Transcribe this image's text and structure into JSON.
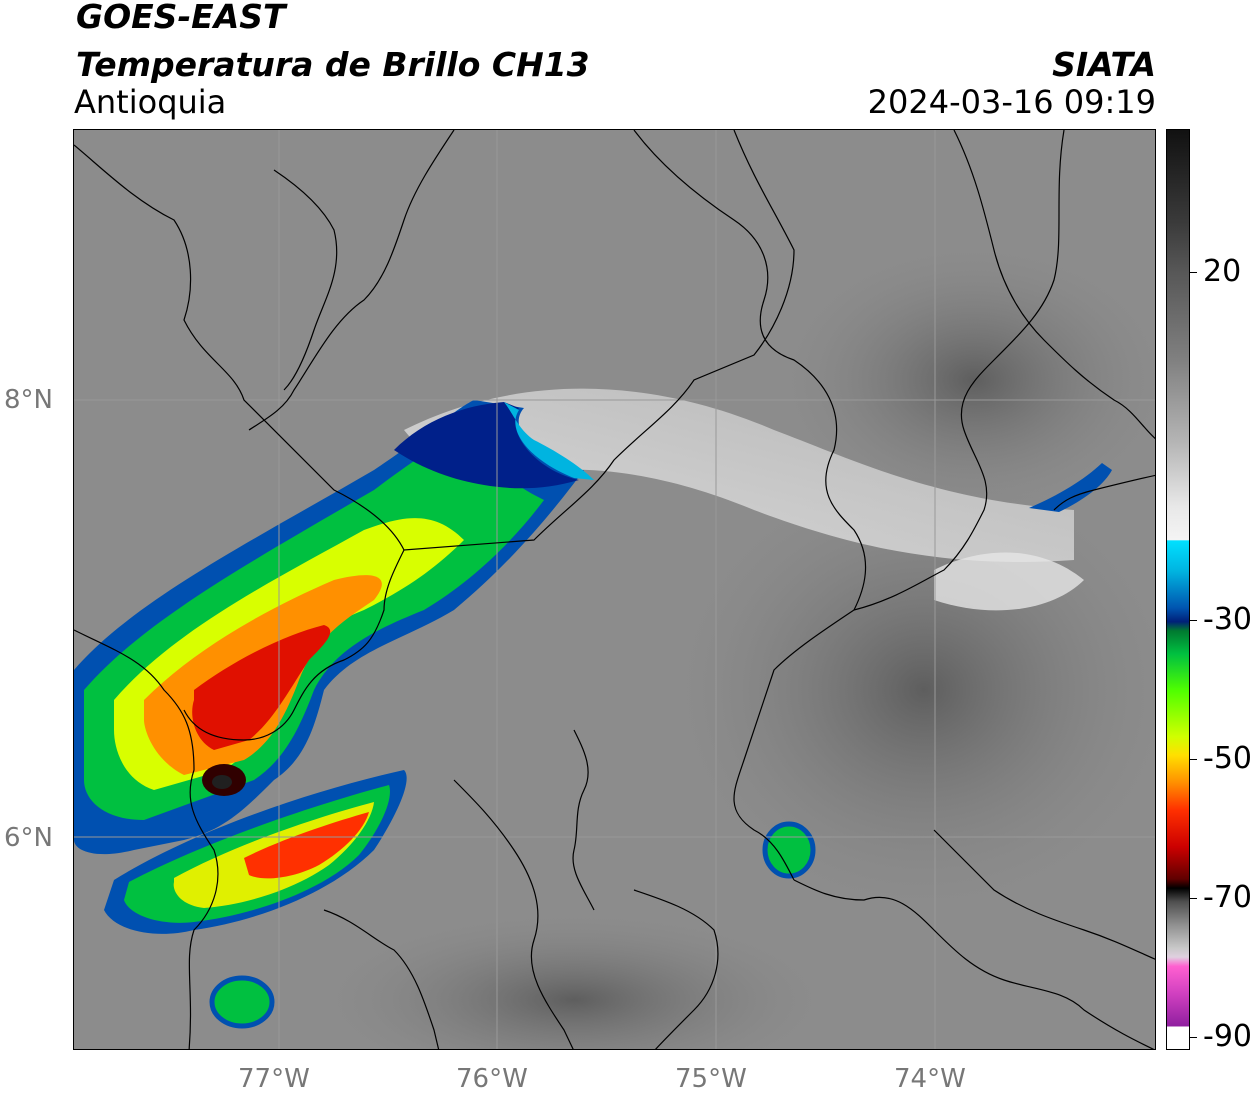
{
  "header": {
    "satellite": "GOES-EAST",
    "product": "Temperatura de Brillo CH13",
    "region": "Antioquia",
    "agency": "SIATA",
    "datetime": "2024-03-16 09:19"
  },
  "map": {
    "lat_labels": [
      "8°N",
      "6°N"
    ],
    "lon_labels": [
      "77°W",
      "76°W",
      "75°W",
      "74°W"
    ],
    "background_color": "#8a8a8a",
    "border_color": "#000000"
  },
  "colorbar": {
    "tick_labels": [
      "20",
      "-30",
      "-50",
      "-70",
      "-90"
    ],
    "colors": {
      "warm_top": "#111111",
      "gray_mid": "#808080",
      "near_white": "#f4f4f4",
      "cyan": "#00e0ff",
      "dark_blue": "#00207a",
      "green": "#00c040",
      "yellow": "#ffe000",
      "orange": "#ff9000",
      "red": "#cc0000",
      "black": "#000000",
      "magenta": "#d040c0",
      "purple": "#9020a0"
    }
  }
}
